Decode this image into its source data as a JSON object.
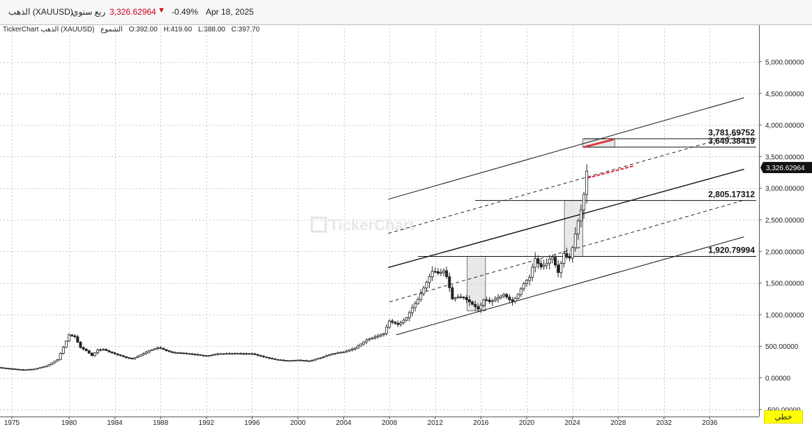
{
  "header": {
    "symbol": "الذهب (XAUUSD)",
    "period": "ربع سنوي",
    "price": "3,326.62964",
    "change_pct": "-0.49%",
    "date": "Apr 18, 2025",
    "down_arrow": "▼"
  },
  "info_line": {
    "source": "TickerChart الذهب (XAUUSD)",
    "chart_kind": "الشموع",
    "o": "O:392.00",
    "h": "H:419.60",
    "l": "L:388.00",
    "c": "C:397.70"
  },
  "watermark": "TickerChart",
  "style_button": "خطي",
  "colors": {
    "up_candle": "#222222",
    "down_candle": "#222222",
    "projection": "#e0303a",
    "price_tag_bg": "#111111"
  },
  "chart_data": {
    "type": "candlestick",
    "y_ticks": [
      "5,000.00000",
      "4,500.00000",
      "4,000.00000",
      "3,500.00000",
      "3,000.00000",
      "2,500.00000",
      "2,000.00000",
      "1,500.00000",
      "1,000.00000",
      "500.00000",
      "0.00000",
      "-500.00000"
    ],
    "y_tick_values": [
      5000,
      4500,
      4000,
      3500,
      3000,
      2500,
      2000,
      1500,
      1000,
      500,
      0,
      -500
    ],
    "x_ticks": [
      "1975",
      "1980",
      "1984",
      "1988",
      "1992",
      "1996",
      "2000",
      "2004",
      "2008",
      "2012",
      "2016",
      "2020",
      "2024",
      "2028",
      "2032",
      "2036"
    ],
    "x_tick_values": [
      1975,
      1980,
      1984,
      1988,
      1992,
      1996,
      2000,
      2004,
      2008,
      2012,
      2016,
      2020,
      2024,
      2028,
      2032,
      2036
    ],
    "last_price_label": "3,326.62964",
    "last_price": 3326.63,
    "levels": [
      {
        "label": "3,781.69752",
        "value": 3781.7
      },
      {
        "label": "3,649.38419",
        "value": 3649.38
      },
      {
        "label": "2,805.17312",
        "value": 2805.17
      },
      {
        "label": "1,920.79994",
        "value": 1920.8
      }
    ],
    "trend_price_path": [
      [
        1973.0,
        180
      ],
      [
        1974.5,
        150
      ],
      [
        1976.0,
        125
      ],
      [
        1977.0,
        140
      ],
      [
        1978.0,
        185
      ],
      [
        1979.0,
        290
      ],
      [
        1979.7,
        560
      ],
      [
        1980.0,
        680
      ],
      [
        1980.5,
        650
      ],
      [
        1981.0,
        480
      ],
      [
        1981.5,
        430
      ],
      [
        1982.0,
        350
      ],
      [
        1982.5,
        440
      ],
      [
        1983.0,
        450
      ],
      [
        1983.5,
        410
      ],
      [
        1984.0,
        380
      ],
      [
        1985.0,
        320
      ],
      [
        1985.5,
        300
      ],
      [
        1986.0,
        340
      ],
      [
        1987.0,
        430
      ],
      [
        1987.8,
        480
      ],
      [
        1988.5,
        430
      ],
      [
        1989.0,
        400
      ],
      [
        1990.0,
        390
      ],
      [
        1991.0,
        370
      ],
      [
        1992.0,
        345
      ],
      [
        1993.0,
        380
      ],
      [
        1994.0,
        385
      ],
      [
        1995.0,
        385
      ],
      [
        1996.0,
        380
      ],
      [
        1997.0,
        330
      ],
      [
        1998.0,
        290
      ],
      [
        1999.0,
        270
      ],
      [
        2000.0,
        280
      ],
      [
        2001.0,
        265
      ],
      [
        2002.0,
        320
      ],
      [
        2003.0,
        380
      ],
      [
        2004.0,
        410
      ],
      [
        2005.0,
        470
      ],
      [
        2006.0,
        600
      ],
      [
        2006.8,
        650
      ],
      [
        2007.5,
        700
      ],
      [
        2008.0,
        900
      ],
      [
        2008.8,
        840
      ],
      [
        2009.5,
        950
      ],
      [
        2010.0,
        1110
      ],
      [
        2010.5,
        1240
      ],
      [
        2011.0,
        1420
      ],
      [
        2011.5,
        1600
      ],
      [
        2011.8,
        1700
      ],
      [
        2012.3,
        1650
      ],
      [
        2012.8,
        1700
      ],
      [
        2013.0,
        1600
      ],
      [
        2013.5,
        1250
      ],
      [
        2014.0,
        1280
      ],
      [
        2014.5,
        1270
      ],
      [
        2015.0,
        1200
      ],
      [
        2015.8,
        1080
      ],
      [
        2016.3,
        1250
      ],
      [
        2016.8,
        1200
      ],
      [
        2017.5,
        1270
      ],
      [
        2018.0,
        1320
      ],
      [
        2018.7,
        1200
      ],
      [
        2019.2,
        1300
      ],
      [
        2019.7,
        1480
      ],
      [
        2020.3,
        1600
      ],
      [
        2020.7,
        1900
      ],
      [
        2021.2,
        1750
      ],
      [
        2021.7,
        1800
      ],
      [
        2022.2,
        1930
      ],
      [
        2022.8,
        1640
      ],
      [
        2023.2,
        1980
      ],
      [
        2023.7,
        1860
      ],
      [
        2024.0,
        2060
      ],
      [
        2024.3,
        2320
      ],
      [
        2024.7,
        2640
      ],
      [
        2024.9,
        2700
      ],
      [
        2025.1,
        3100
      ],
      [
        2025.3,
        3326.63
      ]
    ]
  }
}
